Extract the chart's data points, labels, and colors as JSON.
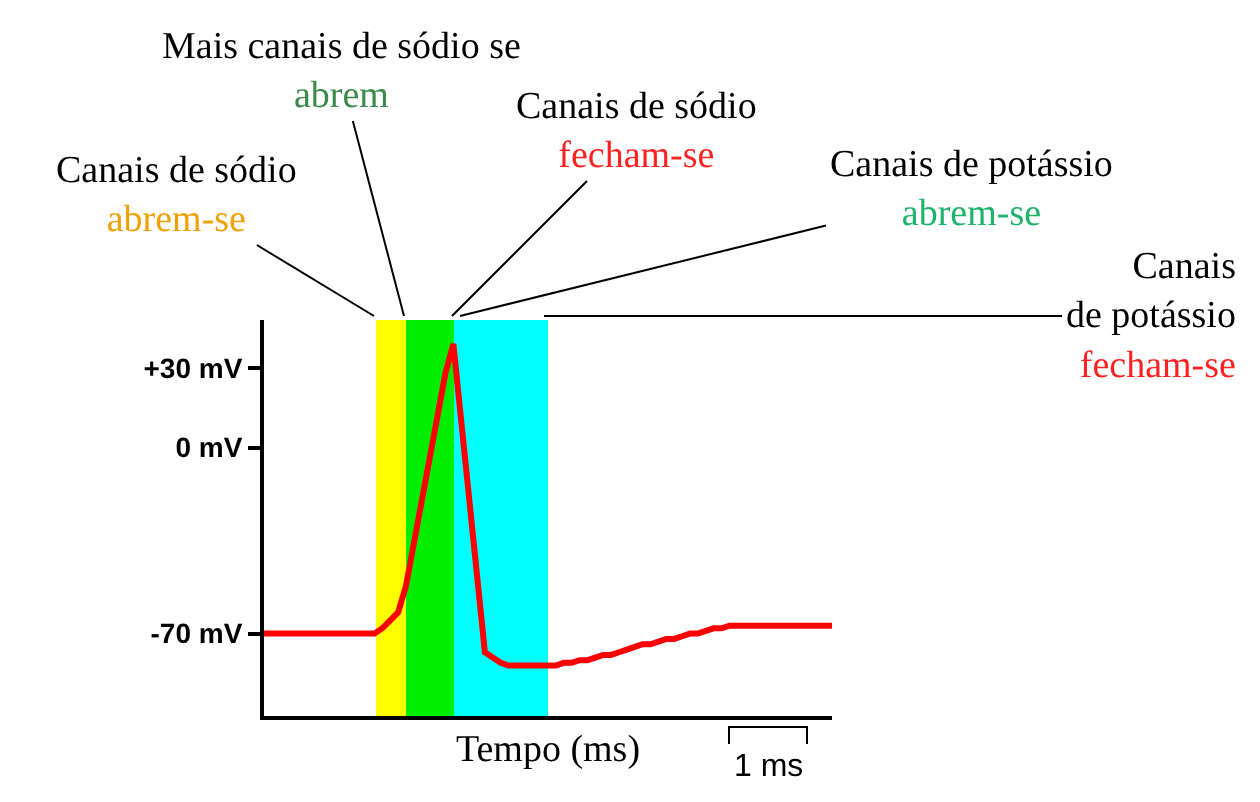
{
  "chart_data": {
    "type": "line",
    "xlabel": "Tempo (ms)",
    "categories": [
      null,
      null,
      null,
      null,
      null,
      null,
      null,
      null,
      null,
      null,
      null,
      null,
      null,
      null,
      null,
      null,
      null,
      null,
      null,
      null,
      null,
      null,
      null,
      null,
      null,
      null,
      null,
      null,
      null,
      null,
      null,
      null,
      null,
      null,
      null,
      null,
      null,
      null,
      null,
      null,
      null,
      null,
      null,
      null,
      null,
      null,
      null,
      null,
      null,
      null,
      null,
      null,
      null,
      null,
      null,
      null,
      null,
      null,
      null,
      null,
      null,
      null,
      null,
      null,
      null,
      null,
      null,
      null,
      null,
      null,
      null,
      null,
      null
    ],
    "series": [
      {
        "color": "#ff0000",
        "values": [
          -70,
          -70,
          -70,
          -70,
          -70,
          -70,
          -70,
          -70,
          -70,
          -70,
          -70,
          -70,
          -70,
          -70,
          -70,
          -68,
          -65,
          -62,
          -52,
          -36,
          -20,
          -4,
          12,
          28,
          39,
          10,
          -19,
          -48,
          -77,
          -79,
          -81,
          -82,
          -82,
          -82,
          -82,
          -82,
          -82,
          -82,
          -81,
          -81,
          -80,
          -80,
          -79,
          -78,
          -78,
          -77,
          -76,
          -75,
          -74,
          -74,
          -73,
          -72,
          -72,
          -71,
          -70,
          -70,
          -69,
          -68,
          -68,
          -67,
          -67,
          -67,
          -67,
          -67,
          -67,
          -67,
          -67,
          -67,
          -67,
          -67,
          -67,
          -67,
          -67
        ]
      }
    ],
    "ylim": [
      -101,
      48
    ],
    "yticks": [
      {
        "value": 30,
        "label": "+30 mV"
      },
      {
        "value": 0,
        "label": "0 mV"
      },
      {
        "value": -70,
        "label": "-70 mV"
      }
    ],
    "tick_labels": "y",
    "grid": false,
    "annotations": [
      "Canais de sódio\nabrem-se",
      "Mais canais de sódio se\nabrem",
      "Canais de sódio\nfecham-se",
      "Canais de potássio\nabrem-se",
      "Canais\nde potássio\nfecham-se",
      "1 ms"
    ]
  }
}
